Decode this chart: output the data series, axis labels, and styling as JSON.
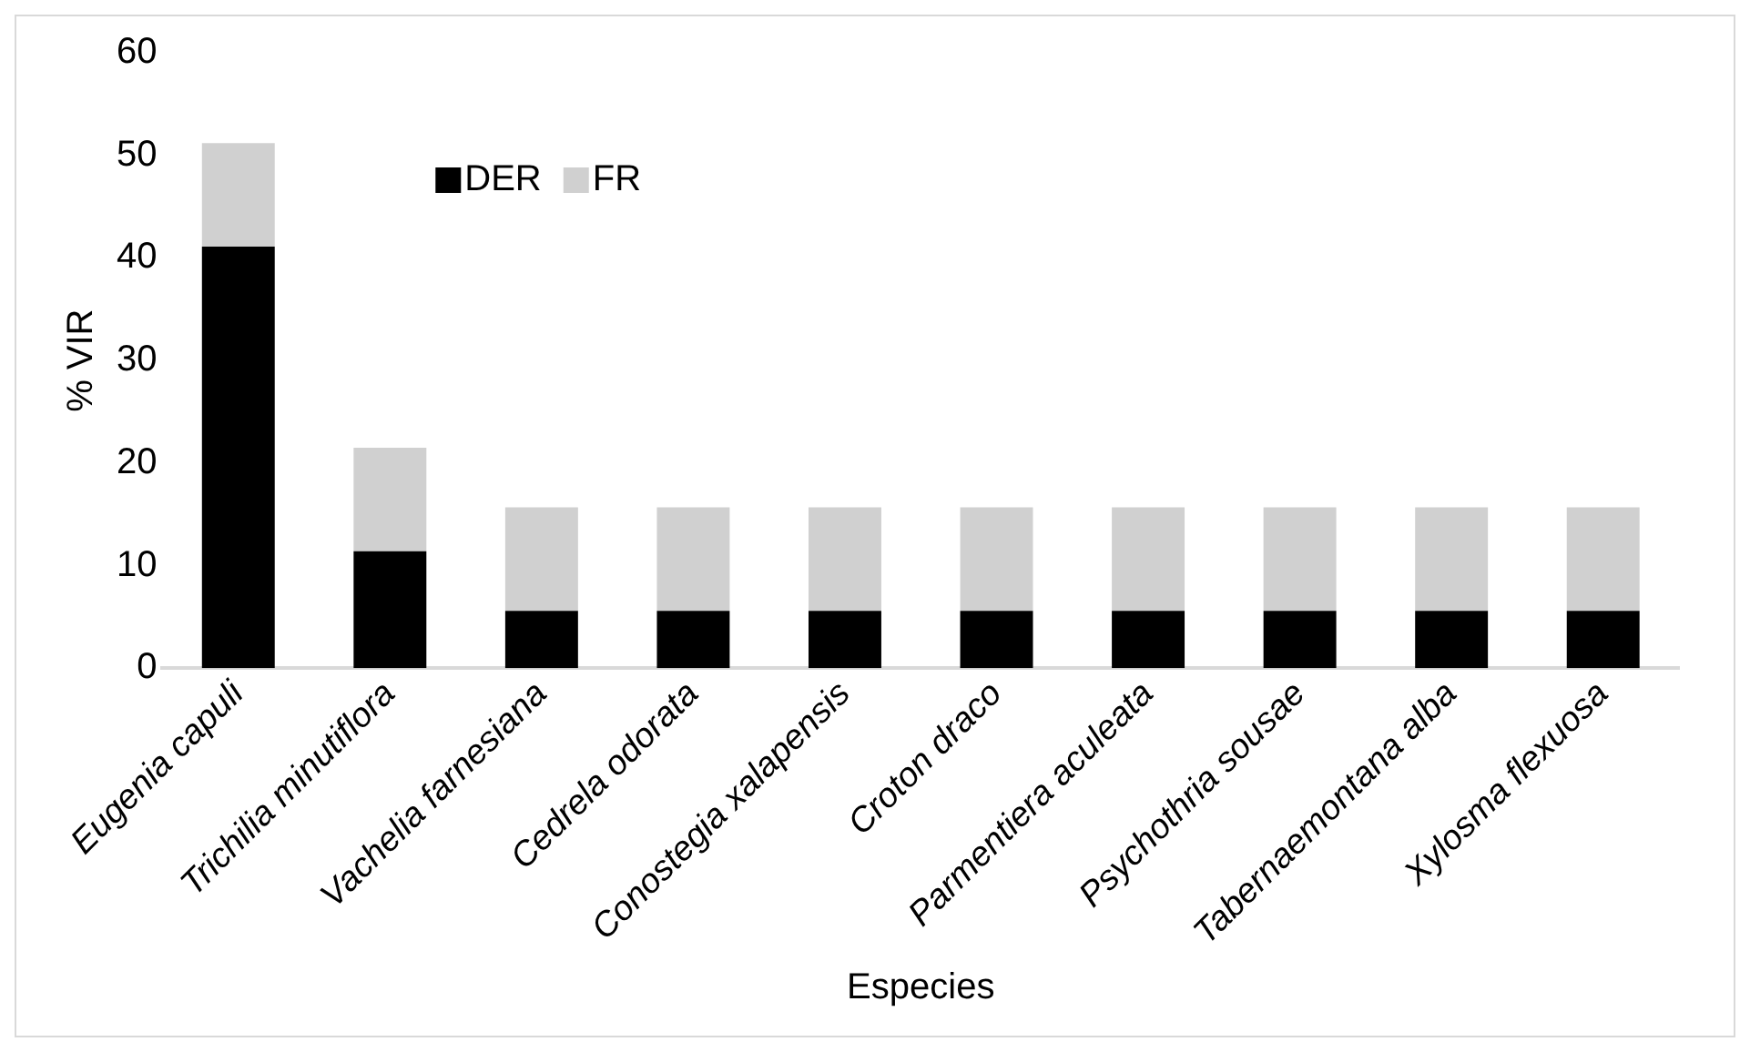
{
  "chart_data": {
    "type": "bar",
    "stacked": true,
    "xlabel": "Especies",
    "ylabel": "% VIR",
    "categories": [
      "Eugenia capuli",
      "Trichilia minutiflora",
      "Vachelia farnesiana",
      "Cedrela odorata",
      "Conostegia xalapensis",
      "Croton draco",
      "Parmentiera aculeata",
      "Psychothria sousae",
      "Tabernaemontana alba",
      "Xylosma flexuosa"
    ],
    "series": [
      {
        "name": "DER",
        "color": "#000000",
        "values": [
          41.1,
          11.4,
          5.6,
          5.6,
          5.6,
          5.6,
          5.6,
          5.6,
          5.6,
          5.6
        ]
      },
      {
        "name": "FR",
        "color": "#d0d0d0",
        "values": [
          10.1,
          10.1,
          10.1,
          10.1,
          10.1,
          10.1,
          10.1,
          10.1,
          10.1,
          10.1
        ]
      }
    ],
    "ylim": [
      0,
      60
    ],
    "yticks": [
      0,
      10,
      20,
      30,
      40,
      50,
      60
    ],
    "grid": false,
    "legend": "top left"
  }
}
